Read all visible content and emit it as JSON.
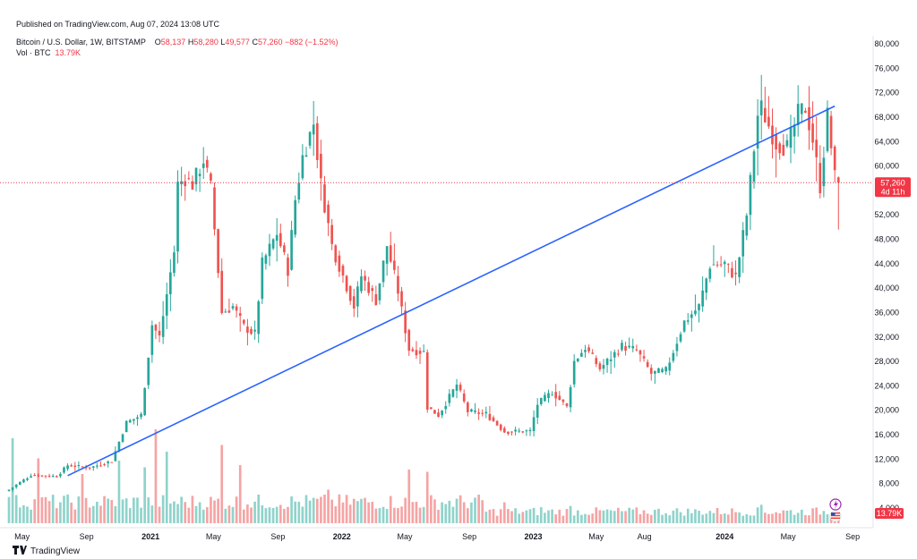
{
  "header": {
    "published": "Published on TradingView.com, Aug 07, 2024 13:08 UTC"
  },
  "legend": {
    "symbol": "Bitcoin / U.S. Dollar, 1W, BITSTAMP",
    "open_label": "O",
    "open": "58,137",
    "high_label": "H",
    "high": "58,280",
    "low_label": "L",
    "low": "49,577",
    "close_label": "C",
    "close": "57,260",
    "change": "−882 (−1.52%)",
    "volume_label": "Vol · BTC",
    "volume": "13.79K"
  },
  "price_badge": {
    "price": "57,260",
    "countdown": "4d 11h"
  },
  "volume_badge": "13.79K",
  "footer": {
    "brand": "TradingView"
  },
  "colors": {
    "up": "#26a69a",
    "down": "#ef5350",
    "trendline": "#2962ff",
    "vol_up": "#8fd3cb",
    "vol_down": "#f5a4a4"
  },
  "chart_data": {
    "type": "candlestick",
    "symbol": "BTCUSD",
    "exchange": "BITSTAMP",
    "interval": "1W",
    "y_axis": {
      "range": [
        4000,
        82000
      ],
      "scale": "linear",
      "position": "right",
      "ticks": [
        "80,000",
        "76,000",
        "72,000",
        "68,000",
        "64,000",
        "60,000",
        "56,000",
        "52,000",
        "48,000",
        "44,000",
        "40,000",
        "36,000",
        "32,000",
        "28,000",
        "24,000",
        "20,000",
        "16,000",
        "12,000",
        "8,000",
        "4,000"
      ],
      "tick_values": [
        80000,
        76000,
        72000,
        68000,
        64000,
        60000,
        56000,
        52000,
        48000,
        44000,
        40000,
        36000,
        32000,
        28000,
        24000,
        20000,
        16000,
        12000,
        8000,
        4000
      ]
    },
    "x_axis": {
      "labels": [
        {
          "text": "May",
          "date": "2020-05-01",
          "bold": false
        },
        {
          "text": "Sep",
          "date": "2020-09-01",
          "bold": false
        },
        {
          "text": "2021",
          "date": "2021-01-01",
          "bold": true
        },
        {
          "text": "May",
          "date": "2021-05-01",
          "bold": false
        },
        {
          "text": "Sep",
          "date": "2021-09-01",
          "bold": false
        },
        {
          "text": "2022",
          "date": "2022-01-01",
          "bold": true
        },
        {
          "text": "May",
          "date": "2022-05-01",
          "bold": false
        },
        {
          "text": "Sep",
          "date": "2022-09-01",
          "bold": false
        },
        {
          "text": "2023",
          "date": "2023-01-01",
          "bold": true
        },
        {
          "text": "May",
          "date": "2023-05-01",
          "bold": false
        },
        {
          "text": "Aug",
          "date": "2023-08-01",
          "bold": false
        },
        {
          "text": "2024",
          "date": "2024-01-01",
          "bold": true
        },
        {
          "text": "May",
          "date": "2024-05-01",
          "bold": false
        },
        {
          "text": "Sep",
          "date": "2024-09-01",
          "bold": false
        }
      ],
      "start": "2020-04-06",
      "end": "2024-10-05"
    },
    "grid": false,
    "current_price": 57260,
    "last_candle": {
      "open": 58137,
      "high": 58280,
      "low": 49577,
      "close": 57260
    },
    "trendline": {
      "from": {
        "date": "2020-07-27",
        "price": 9300
      },
      "to": {
        "date": "2024-07-29",
        "price": 69800
      }
    },
    "anchors": [
      [
        "2020-04-06",
        7000
      ],
      [
        "2020-05-18",
        9400
      ],
      [
        "2020-07-06",
        9200
      ],
      [
        "2020-07-27",
        11000
      ],
      [
        "2020-09-07",
        10600
      ],
      [
        "2020-10-19",
        11700
      ],
      [
        "2020-11-16",
        18000
      ],
      [
        "2020-12-14",
        19200
      ],
      [
        "2021-01-04",
        34000
      ],
      [
        "2021-01-18",
        32000
      ],
      [
        "2021-02-15",
        46000
      ],
      [
        "2021-02-22",
        57000
      ],
      [
        "2021-03-08",
        58000
      ],
      [
        "2021-03-22",
        57000
      ],
      [
        "2021-04-12",
        61000
      ],
      [
        "2021-04-26",
        56500
      ],
      [
        "2021-05-17",
        36000
      ],
      [
        "2021-06-07",
        37000
      ],
      [
        "2021-06-28",
        33700
      ],
      [
        "2021-07-19",
        32500
      ],
      [
        "2021-08-02",
        44000
      ],
      [
        "2021-08-30",
        49000
      ],
      [
        "2021-09-20",
        43000
      ],
      [
        "2021-10-04",
        54500
      ],
      [
        "2021-10-18",
        61500
      ],
      [
        "2021-11-08",
        67000
      ],
      [
        "2021-11-22",
        57000
      ],
      [
        "2021-12-13",
        47000
      ],
      [
        "2022-01-03",
        42000
      ],
      [
        "2022-01-24",
        37000
      ],
      [
        "2022-02-07",
        42000
      ],
      [
        "2022-03-07",
        38000
      ],
      [
        "2022-03-28",
        47000
      ],
      [
        "2022-04-18",
        39500
      ],
      [
        "2022-05-09",
        30000
      ],
      [
        "2022-06-06",
        29500
      ],
      [
        "2022-06-13",
        20500
      ],
      [
        "2022-07-04",
        19200
      ],
      [
        "2022-08-08",
        24200
      ],
      [
        "2022-08-29",
        19800
      ],
      [
        "2022-10-03",
        19400
      ],
      [
        "2022-11-07",
        16500
      ],
      [
        "2022-12-26",
        16600
      ],
      [
        "2023-01-09",
        21000
      ],
      [
        "2023-02-06",
        23000
      ],
      [
        "2023-03-06",
        20500
      ],
      [
        "2023-03-20",
        28000
      ],
      [
        "2023-04-10",
        30300
      ],
      [
        "2023-05-08",
        26800
      ],
      [
        "2023-06-19",
        30500
      ],
      [
        "2023-07-17",
        29800
      ],
      [
        "2023-08-14",
        26000
      ],
      [
        "2023-09-11",
        26500
      ],
      [
        "2023-10-16",
        34500
      ],
      [
        "2023-11-13",
        37000
      ],
      [
        "2023-12-04",
        43800
      ],
      [
        "2024-01-01",
        44000
      ],
      [
        "2024-01-22",
        41800
      ],
      [
        "2024-02-12",
        52000
      ],
      [
        "2024-03-04",
        68300
      ],
      [
        "2024-03-11",
        69500
      ],
      [
        "2024-04-08",
        63700
      ],
      [
        "2024-04-29",
        63000
      ],
      [
        "2024-05-20",
        68500
      ],
      [
        "2024-06-03",
        69600
      ],
      [
        "2024-06-17",
        64300
      ],
      [
        "2024-07-01",
        56700
      ],
      [
        "2024-07-15",
        68200
      ],
      [
        "2024-07-29",
        58137
      ],
      [
        "2024-08-05",
        57260
      ]
    ],
    "volume": {
      "unit": "BTC",
      "current": "13.79K",
      "spikes": [
        [
          "2020-04-13",
          1.9
        ],
        [
          "2020-06-01",
          1.45
        ],
        [
          "2020-08-24",
          1.1
        ],
        [
          "2020-11-02",
          1.4
        ],
        [
          "2020-12-21",
          1.25
        ],
        [
          "2021-01-11",
          2.1
        ],
        [
          "2021-02-01",
          1.6
        ],
        [
          "2021-05-17",
          1.75
        ],
        [
          "2021-06-21",
          1.3
        ],
        [
          "2021-12-06",
          0.75
        ],
        [
          "2022-05-09",
          1.2
        ],
        [
          "2022-06-13",
          1.15
        ],
        [
          "2022-11-07",
          0.85
        ],
        [
          "2023-01-16",
          0.65
        ],
        [
          "2023-03-13",
          0.7
        ],
        [
          "2024-03-11",
          0.75
        ]
      ]
    }
  }
}
